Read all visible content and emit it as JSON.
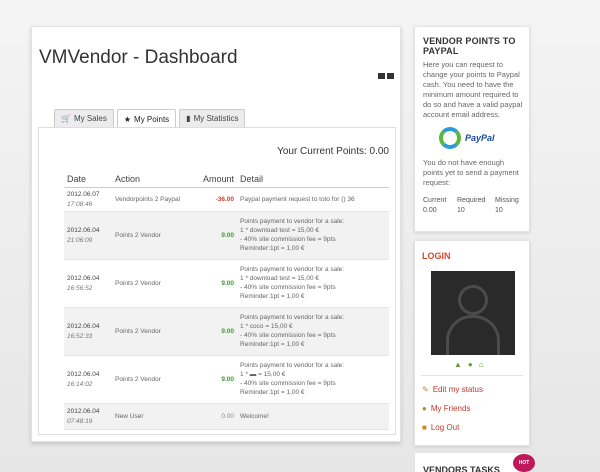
{
  "title": "VMVendor - Dashboard",
  "tabs": [
    {
      "label": "My Sales",
      "icon": "cart-icon"
    },
    {
      "label": "My Points",
      "icon": "star-icon"
    },
    {
      "label": "My Statistics",
      "icon": "bar-chart-icon"
    }
  ],
  "points_label": "Your Current Points: 0.00",
  "table": {
    "headers": [
      "Date",
      "Action",
      "Amount",
      "Detail"
    ],
    "rows": [
      {
        "date": "2012.06.07",
        "time": "17:08:46",
        "action": "Vendorpoints 2 Paypal",
        "amount": "-36.00",
        "detail": [
          "Paypal payment request to toto for () 36"
        ]
      },
      {
        "date": "2012.06.04",
        "time": "21:06:09",
        "action": "Points 2 Vendor",
        "amount": "9.00",
        "detail": [
          "Points payment to vendor for a sale:",
          "1 * download test = 15,00 €",
          "- 40% site commission fee = 9pts",
          "Reminder:1pt = 1,00 €"
        ]
      },
      {
        "date": "2012.06.04",
        "time": "16:56:52",
        "action": "Points 2 Vendor",
        "amount": "9.00",
        "detail": [
          "Points payment to vendor for a sale:",
          "1 * download test = 15,00 €",
          "- 40% site commission fee = 9pts",
          "Reminder:1pt = 1,00 €"
        ]
      },
      {
        "date": "2012.06.04",
        "time": "16:52:33",
        "action": "Points 2 Vendor",
        "amount": "9.00",
        "detail": [
          "Points payment to vendor for a sale:",
          "1 * coco = 15,00 €",
          "- 40% site commission fee = 9pts",
          "Reminder:1pt = 1,00 €"
        ]
      },
      {
        "date": "2012.06.04",
        "time": "16:14:02",
        "action": "Points 2 Vendor",
        "amount": "9.00",
        "detail": [
          "Points payment to vendor for a sale:",
          "1 * ▬ = 15,00 €",
          "- 40% site commission fee = 9pts",
          "Reminder:1pt = 1,00 €"
        ]
      },
      {
        "date": "2012.06.04",
        "time": "07:48:19",
        "action": "New User",
        "amount": "0.00",
        "detail": [
          "Welcome!"
        ]
      }
    ]
  },
  "vendor_points": {
    "heading": "VENDOR POINTS TO PAYPAL",
    "description": "Here you can request to change your points to Paypal cash. You need to have the minimum amount required to do so and have a valid paypal account email address.",
    "logo_text": "PayPal",
    "note": "You do not have enough points yet to send a payment request:",
    "stats": [
      {
        "label": "Current",
        "value": "0.00"
      },
      {
        "label": "Required",
        "value": "10"
      },
      {
        "label": "Missing",
        "value": "10"
      }
    ]
  },
  "login": {
    "heading": "LOGIN",
    "links": [
      {
        "label": "Edit my status",
        "icon": "pencil-icon"
      },
      {
        "label": "My Friends",
        "icon": "friends-icon"
      },
      {
        "label": "Log Out",
        "icon": "logout-icon"
      }
    ]
  },
  "tasks": {
    "heading": "VENDORS TASKS",
    "badge": "HOT"
  },
  "colors": {
    "positive": "#3a9a2a",
    "negative": "#d23a2a",
    "link": "#c0392b"
  }
}
